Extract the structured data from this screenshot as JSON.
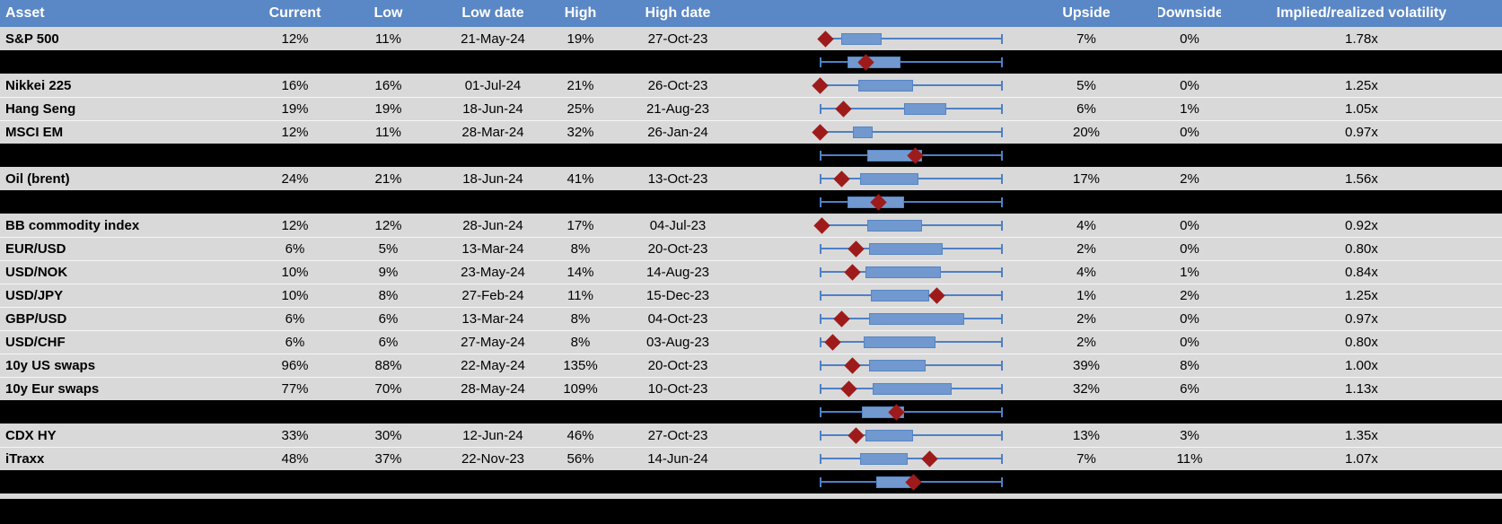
{
  "colors": {
    "header-bg": "#5A87C5",
    "header-text": "#FFFFFF",
    "row-bg": "#D9D9D9",
    "band": "#000000",
    "box-fill": "#7199CF",
    "box-border": "#5585C4",
    "whisker": "#4E80C6",
    "marker": "#9E1B1B",
    "text": "#000000"
  },
  "chart_data": {
    "type": "table",
    "subtype": "table-with-range-boxplots",
    "boxplot_note": "box q1/q3 and marker are fractions 0-1 of each row's low-to-high whisker span; marker is the dark-red diamond (current level), separator rows show aggregate boxplots on black bands",
    "columns": [
      "Asset",
      "Current",
      "Low",
      "Low date",
      "High",
      "High date",
      "",
      "Upside",
      "Downside",
      "Implied/realized volatility"
    ],
    "rows": [
      {
        "kind": "data",
        "asset": "S&P 500",
        "current": "12%",
        "low": "11%",
        "low_date": "21-May-24",
        "high": "19%",
        "high_date": "27-Oct-23",
        "upside": "7%",
        "downside": "0%",
        "implied_realized": "1.78x",
        "box": {
          "q1": 0.12,
          "q3": 0.34,
          "marker": 0.03,
          "left_cap": false
        }
      },
      {
        "kind": "separator",
        "box": {
          "q1": 0.15,
          "q3": 0.44,
          "marker": 0.25,
          "left_cap": true
        }
      },
      {
        "kind": "data",
        "asset": "Nikkei 225",
        "current": "16%",
        "low": "16%",
        "low_date": "01-Jul-24",
        "high": "21%",
        "high_date": "26-Oct-23",
        "upside": "5%",
        "downside": "0%",
        "implied_realized": "1.25x",
        "box": {
          "q1": 0.21,
          "q3": 0.51,
          "marker": 0.0,
          "left_cap": false
        }
      },
      {
        "kind": "data",
        "asset": "Hang Seng",
        "current": "19%",
        "low": "19%",
        "low_date": "18-Jun-24",
        "high": "25%",
        "high_date": "21-Aug-23",
        "upside": "6%",
        "downside": "1%",
        "implied_realized": "1.05x",
        "box": {
          "q1": 0.46,
          "q3": 0.69,
          "marker": 0.13,
          "left_cap": true
        }
      },
      {
        "kind": "data",
        "asset": "MSCI EM",
        "current": "12%",
        "low": "11%",
        "low_date": "28-Mar-24",
        "high": "32%",
        "high_date": "26-Jan-24",
        "upside": "20%",
        "downside": "0%",
        "implied_realized": "0.97x",
        "box": {
          "q1": 0.18,
          "q3": 0.29,
          "marker": 0.0,
          "left_cap": false
        }
      },
      {
        "kind": "separator",
        "box": {
          "q1": 0.26,
          "q3": 0.56,
          "marker": 0.52,
          "left_cap": true
        }
      },
      {
        "kind": "data",
        "asset": "Oil (brent)",
        "current": "24%",
        "low": "21%",
        "low_date": "18-Jun-24",
        "high": "41%",
        "high_date": "13-Oct-23",
        "upside": "17%",
        "downside": "2%",
        "implied_realized": "1.56x",
        "box": {
          "q1": 0.22,
          "q3": 0.54,
          "marker": 0.12,
          "left_cap": true
        }
      },
      {
        "kind": "separator",
        "box": {
          "q1": 0.15,
          "q3": 0.46,
          "marker": 0.32,
          "left_cap": true
        }
      },
      {
        "kind": "data",
        "asset": "BB commodity index",
        "current": "12%",
        "low": "12%",
        "low_date": "28-Jun-24",
        "high": "17%",
        "high_date": "04-Jul-23",
        "upside": "4%",
        "downside": "0%",
        "implied_realized": "0.92x",
        "box": {
          "q1": 0.26,
          "q3": 0.56,
          "marker": 0.01,
          "left_cap": false
        }
      },
      {
        "kind": "data",
        "asset": "EUR/USD",
        "current": "6%",
        "low": "5%",
        "low_date": "13-Mar-24",
        "high": "8%",
        "high_date": "20-Oct-23",
        "upside": "2%",
        "downside": "0%",
        "implied_realized": "0.80x",
        "box": {
          "q1": 0.27,
          "q3": 0.67,
          "marker": 0.2,
          "left_cap": true
        }
      },
      {
        "kind": "data",
        "asset": "USD/NOK",
        "current": "10%",
        "low": "9%",
        "low_date": "23-May-24",
        "high": "14%",
        "high_date": "14-Aug-23",
        "upside": "4%",
        "downside": "1%",
        "implied_realized": "0.84x",
        "box": {
          "q1": 0.25,
          "q3": 0.66,
          "marker": 0.18,
          "left_cap": true
        }
      },
      {
        "kind": "data",
        "asset": "USD/JPY",
        "current": "10%",
        "low": "8%",
        "low_date": "27-Feb-24",
        "high": "11%",
        "high_date": "15-Dec-23",
        "upside": "1%",
        "downside": "2%",
        "implied_realized": "1.25x",
        "box": {
          "q1": 0.28,
          "q3": 0.6,
          "marker": 0.64,
          "left_cap": true
        }
      },
      {
        "kind": "data",
        "asset": "GBP/USD",
        "current": "6%",
        "low": "6%",
        "low_date": "13-Mar-24",
        "high": "8%",
        "high_date": "04-Oct-23",
        "upside": "2%",
        "downside": "0%",
        "implied_realized": "0.97x",
        "box": {
          "q1": 0.27,
          "q3": 0.79,
          "marker": 0.12,
          "left_cap": true
        }
      },
      {
        "kind": "data",
        "asset": "USD/CHF",
        "current": "6%",
        "low": "6%",
        "low_date": "27-May-24",
        "high": "8%",
        "high_date": "03-Aug-23",
        "upside": "2%",
        "downside": "0%",
        "implied_realized": "0.80x",
        "box": {
          "q1": 0.24,
          "q3": 0.63,
          "marker": 0.07,
          "left_cap": true
        }
      },
      {
        "kind": "data",
        "asset": "10y US swaps",
        "current": "96%",
        "low": "88%",
        "low_date": "22-May-24",
        "high": "135%",
        "high_date": "20-Oct-23",
        "upside": "39%",
        "downside": "8%",
        "implied_realized": "1.00x",
        "box": {
          "q1": 0.27,
          "q3": 0.58,
          "marker": 0.18,
          "left_cap": true
        }
      },
      {
        "kind": "data",
        "asset": "10y Eur swaps",
        "current": "77%",
        "low": "70%",
        "low_date": "28-May-24",
        "high": "109%",
        "high_date": "10-Oct-23",
        "upside": "32%",
        "downside": "6%",
        "implied_realized": "1.13x",
        "box": {
          "q1": 0.29,
          "q3": 0.72,
          "marker": 0.16,
          "left_cap": true
        }
      },
      {
        "kind": "separator",
        "box": {
          "q1": 0.23,
          "q3": 0.46,
          "marker": 0.42,
          "left_cap": true
        }
      },
      {
        "kind": "data",
        "asset": "CDX HY",
        "current": "33%",
        "low": "30%",
        "low_date": "12-Jun-24",
        "high": "46%",
        "high_date": "27-Oct-23",
        "upside": "13%",
        "downside": "3%",
        "implied_realized": "1.35x",
        "box": {
          "q1": 0.25,
          "q3": 0.51,
          "marker": 0.2,
          "left_cap": true
        }
      },
      {
        "kind": "data",
        "asset": "iTraxx",
        "current": "48%",
        "low": "37%",
        "low_date": "22-Nov-23",
        "high": "56%",
        "high_date": "14-Jun-24",
        "upside": "7%",
        "downside": "11%",
        "implied_realized": "1.07x",
        "box": {
          "q1": 0.22,
          "q3": 0.48,
          "marker": 0.6,
          "left_cap": true
        }
      },
      {
        "kind": "separator",
        "box": {
          "q1": 0.31,
          "q3": 0.5,
          "marker": 0.51,
          "left_cap": true
        }
      }
    ]
  }
}
